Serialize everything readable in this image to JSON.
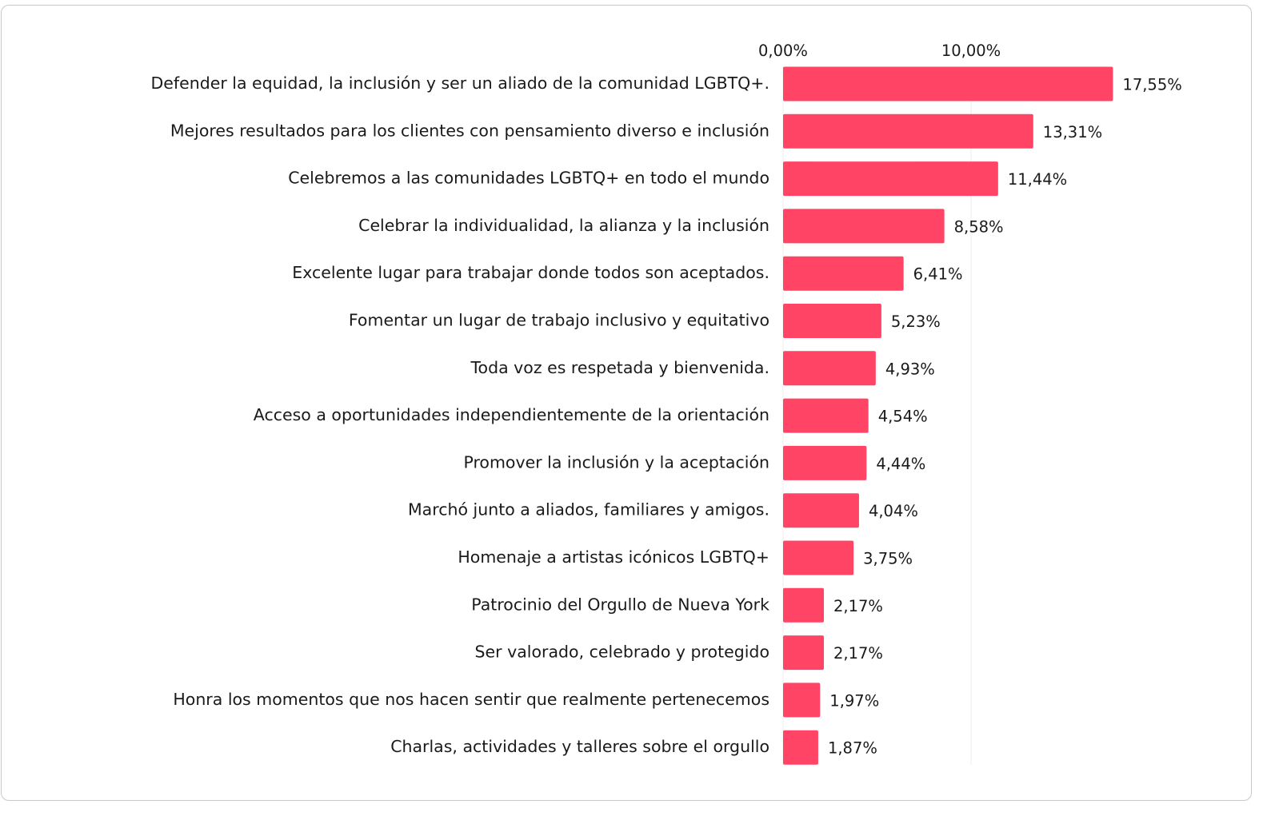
{
  "chart_data": {
    "type": "bar",
    "orientation": "horizontal",
    "title": "",
    "xlabel": "",
    "ylabel": "",
    "categories": [
      "Defender la equidad, la inclusión y ser un aliado de la comunidad LGBTQ+.",
      "Mejores resultados para los clientes con pensamiento diverso e inclusión",
      "Celebremos a las comunidades LGBTQ+ en todo el mundo",
      "Celebrar la individualidad, la alianza y la inclusión",
      "Excelente lugar para trabajar donde todos son aceptados.",
      "Fomentar un lugar de trabajo inclusivo y equitativo",
      "Toda voz es respetada y bienvenida.",
      "Acceso a oportunidades independientemente de la orientación",
      "Promover la inclusión y la aceptación",
      "Marchó junto a aliados, familiares y amigos.",
      "Homenaje a artistas icónicos LGBTQ+",
      "Patrocinio del Orgullo de Nueva York",
      "Ser valorado, celebrado y protegido",
      "Honra los momentos que nos hacen sentir que realmente pertenecemos",
      "Charlas, actividades y talleres sobre el orgullo"
    ],
    "values": [
      17.55,
      13.31,
      11.44,
      8.58,
      6.41,
      5.23,
      4.93,
      4.54,
      4.44,
      4.04,
      3.75,
      2.17,
      2.17,
      1.97,
      1.87
    ],
    "value_labels": [
      "17,55%",
      "13,31%",
      "11,44%",
      "8,58%",
      "6,41%",
      "5,23%",
      "4,93%",
      "4,54%",
      "4,44%",
      "4,04%",
      "3,75%",
      "2,17%",
      "2,17%",
      "1,97%",
      "1,87%"
    ],
    "x_ticks": [
      0,
      10
    ],
    "x_tick_labels": [
      "0,00%",
      "10,00%"
    ],
    "x_axis_position": "top",
    "grid": true,
    "legend": "none",
    "bar_color": "#ff4466",
    "grid_color": "#ececec"
  }
}
